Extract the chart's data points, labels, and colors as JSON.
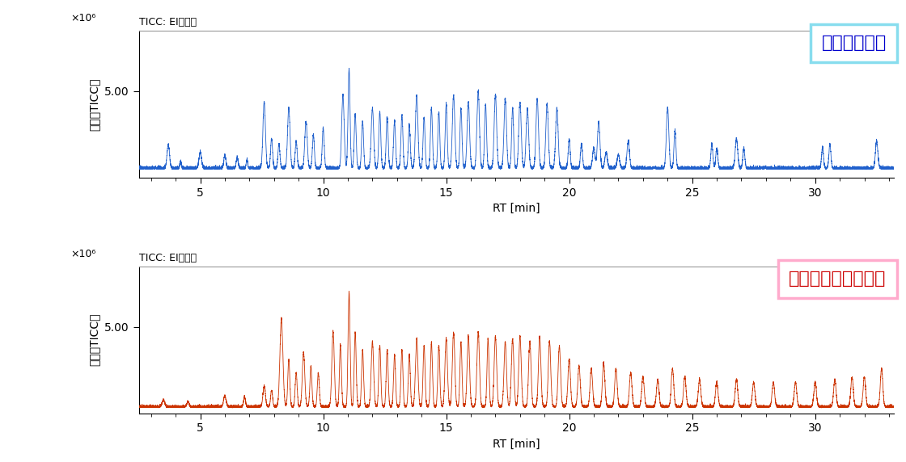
{
  "title1": "TICC: EIデータ",
  "title2": "TICC: EIデータ",
  "label1": "不織布マスク",
  "label2": "お弁当用抗菌シート",
  "xlabel": "RT [min]",
  "ylabel": "強度（TICC）",
  "line_color1": "#2060cc",
  "line_color2": "#cc3300",
  "box_edge_color1": "#88ddee",
  "box_edge_color2": "#ffaacc",
  "label1_color": "#0000cc",
  "label2_color": "#cc0000",
  "xmin": 2.5,
  "xmax": 33.2,
  "ymin": 0,
  "ymax": 8.5,
  "ytick_val": 5.0,
  "xticks": [
    5,
    10,
    15,
    20,
    25,
    30
  ],
  "background": "#ffffff"
}
